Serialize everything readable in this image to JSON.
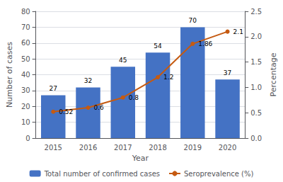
{
  "chart_data": {
    "type": "bar",
    "categories": [
      "2015",
      "2016",
      "2017",
      "2018",
      "2019",
      "2020"
    ],
    "series": [
      {
        "name": "Total number of confirmed cases",
        "type": "bar",
        "color": "#4472C4",
        "values": [
          27,
          32,
          45,
          54,
          70,
          37
        ]
      },
      {
        "name": "Seroprevalence (%)",
        "type": "line",
        "axis": "y2",
        "color": "#C55A11",
        "marker": "circle",
        "line_style": "solid",
        "values": [
          0.52,
          0.6,
          0.8,
          1.2,
          1.86,
          2.1
        ]
      }
    ],
    "xlabel": "Year",
    "ylabel": "Number of cases",
    "y2label": "Percentage",
    "ylim": [
      0,
      80
    ],
    "yticks": [
      0,
      10,
      20,
      30,
      40,
      50,
      60,
      70,
      80
    ],
    "y2lim": [
      0,
      2.5
    ],
    "y2ticks": [
      {
        "value": 0,
        "label": "0.0"
      },
      0.5,
      {
        "value": 1,
        "label": "1.0"
      },
      1.5,
      {
        "value": 2,
        "label": "2.0"
      },
      2.5
    ],
    "grid": true,
    "legend": "bottom",
    "data_labels": true
  }
}
